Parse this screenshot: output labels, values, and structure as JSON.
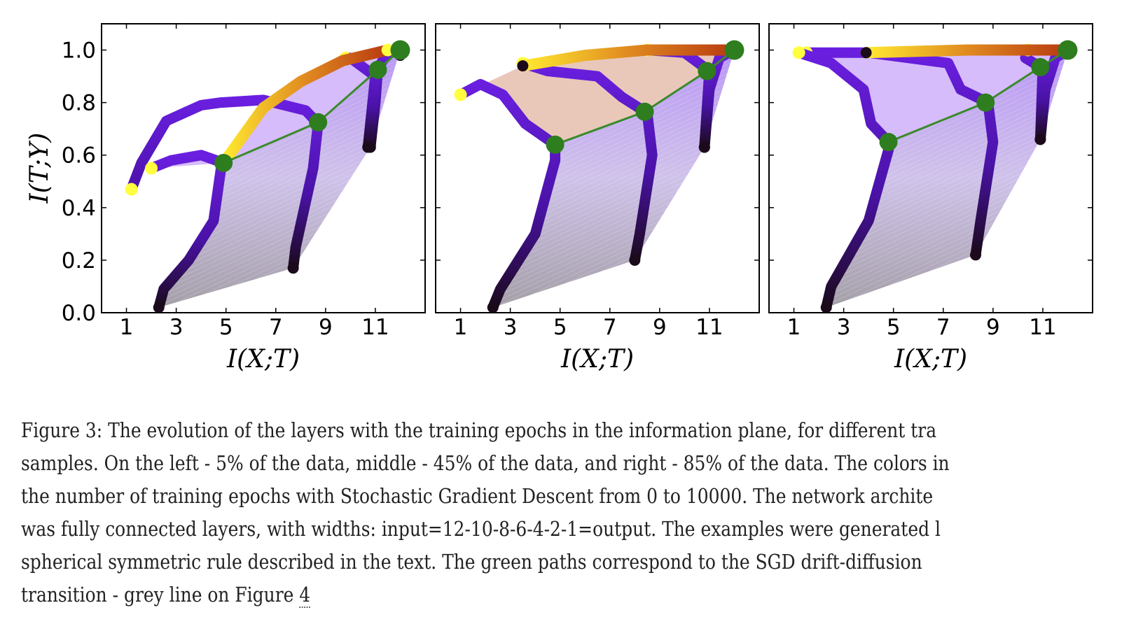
{
  "chart_data": [
    {
      "type": "line",
      "panel": "left",
      "title": "",
      "xlabel": "I(X;T)",
      "ylabel": "I(T;Y)",
      "xlim": [
        0,
        13
      ],
      "ylim": [
        0,
        1.1
      ],
      "xticks": [
        "1",
        "3",
        "5",
        "7",
        "9",
        "11"
      ],
      "xtick_values": [
        1,
        3,
        5,
        7,
        9,
        11
      ],
      "yticks": [
        "0.0",
        "0.2",
        "0.4",
        "0.6",
        "0.8",
        "1.0"
      ],
      "ytick_values": [
        0,
        0.2,
        0.4,
        0.6,
        0.8,
        1.0
      ],
      "colormap": "epochs 0 (black) → purple → red → yellow (10000)",
      "layers": [
        {
          "name": "layer-1",
          "path": [
            [
              12.0,
              0.98
            ],
            [
              12.0,
              1.0
            ]
          ]
        },
        {
          "name": "layer-2",
          "path": [
            [
              10.8,
              0.63
            ],
            [
              11.0,
              0.8
            ],
            [
              11.1,
              0.93
            ],
            [
              11.5,
              0.99
            ],
            [
              12.0,
              1.0
            ]
          ]
        },
        {
          "name": "layer-3",
          "path": [
            [
              7.7,
              0.17
            ],
            [
              7.8,
              0.25
            ],
            [
              8.5,
              0.55
            ],
            [
              8.7,
              0.72
            ],
            [
              8.2,
              0.77
            ],
            [
              6.5,
              0.81
            ],
            [
              4.8,
              0.8
            ],
            [
              4.0,
              0.79
            ],
            [
              2.6,
              0.73
            ],
            [
              1.6,
              0.57
            ],
            [
              1.2,
              0.47
            ]
          ]
        },
        {
          "name": "layer-4",
          "path": [
            [
              2.3,
              0.02
            ],
            [
              2.5,
              0.09
            ],
            [
              3.5,
              0.2
            ],
            [
              4.5,
              0.35
            ],
            [
              4.8,
              0.55
            ],
            [
              4.9,
              0.57
            ],
            [
              4.0,
              0.6
            ],
            [
              2.8,
              0.58
            ],
            [
              2.0,
              0.55
            ]
          ]
        },
        {
          "name": "layer-5",
          "path": [
            [
              10.7,
              0.63
            ],
            [
              11.0,
              0.9
            ],
            [
              10.0,
              0.97
            ],
            [
              9.8,
              0.97
            ]
          ]
        },
        {
          "name": "layer-6",
          "path": [
            [
              4.9,
              0.57
            ],
            [
              6.5,
              0.78
            ],
            [
              8.0,
              0.88
            ],
            [
              9.7,
              0.96
            ],
            [
              11.5,
              1.0
            ]
          ]
        }
      ],
      "green_path": [
        [
          4.9,
          0.57
        ],
        [
          8.7,
          0.725
        ],
        [
          11.1,
          0.925
        ],
        [
          12.0,
          1.0
        ]
      ]
    },
    {
      "type": "line",
      "panel": "middle",
      "xlabel": "I(X;T)",
      "ylabel": "",
      "xlim": [
        0,
        13
      ],
      "ylim": [
        0,
        1.1
      ],
      "xticks": [
        "1",
        "3",
        "5",
        "7",
        "9",
        "11"
      ],
      "xtick_values": [
        1,
        3,
        5,
        7,
        9,
        11
      ],
      "yticks": [],
      "layers": [
        {
          "name": "layer-2",
          "path": [
            [
              10.8,
              0.63
            ],
            [
              11.0,
              0.85
            ],
            [
              11.4,
              0.97
            ],
            [
              12.0,
              1.0
            ]
          ]
        },
        {
          "name": "layer-3",
          "path": [
            [
              8.0,
              0.2
            ],
            [
              8.2,
              0.3
            ],
            [
              8.7,
              0.6
            ],
            [
              8.5,
              0.76
            ],
            [
              7.5,
              0.82
            ],
            [
              6.5,
              0.9
            ],
            [
              4.5,
              0.92
            ],
            [
              3.5,
              0.95
            ]
          ]
        },
        {
          "name": "layer-4",
          "path": [
            [
              2.3,
              0.02
            ],
            [
              2.6,
              0.09
            ],
            [
              4.0,
              0.3
            ],
            [
              4.8,
              0.58
            ],
            [
              4.8,
              0.64
            ],
            [
              3.6,
              0.72
            ],
            [
              2.7,
              0.83
            ],
            [
              1.8,
              0.87
            ],
            [
              1.0,
              0.83
            ]
          ]
        },
        {
          "name": "layer-5",
          "path": [
            [
              10.8,
              0.63
            ],
            [
              11.0,
              0.92
            ],
            [
              10.0,
              0.99
            ],
            [
              8.5,
              1.0
            ]
          ]
        },
        {
          "name": "layer-6",
          "path": [
            [
              3.5,
              0.94
            ],
            [
              6.0,
              0.98
            ],
            [
              8.5,
              1.0
            ],
            [
              12.0,
              1.0
            ]
          ]
        }
      ],
      "green_path": [
        [
          4.8,
          0.64
        ],
        [
          8.4,
          0.765
        ],
        [
          10.9,
          0.92
        ],
        [
          12.0,
          1.0
        ]
      ]
    },
    {
      "type": "line",
      "panel": "right",
      "xlabel": "I(X;T)",
      "ylabel": "",
      "xlim": [
        0,
        13
      ],
      "ylim": [
        0,
        1.1
      ],
      "xticks": [
        "1",
        "3",
        "5",
        "7",
        "9",
        "11"
      ],
      "xtick_values": [
        1,
        3,
        5,
        7,
        9,
        11
      ],
      "yticks": [],
      "layers": [
        {
          "name": "layer-2",
          "path": [
            [
              10.9,
              0.66
            ],
            [
              11.1,
              0.85
            ],
            [
              11.5,
              0.97
            ],
            [
              12.0,
              1.0
            ]
          ]
        },
        {
          "name": "layer-3",
          "path": [
            [
              8.3,
              0.22
            ],
            [
              8.5,
              0.35
            ],
            [
              9.0,
              0.65
            ],
            [
              8.8,
              0.8
            ],
            [
              7.7,
              0.85
            ],
            [
              7.2,
              0.95
            ],
            [
              4.0,
              0.99
            ],
            [
              1.5,
              0.99
            ]
          ]
        },
        {
          "name": "layer-4",
          "path": [
            [
              2.3,
              0.02
            ],
            [
              2.5,
              0.1
            ],
            [
              4.0,
              0.35
            ],
            [
              4.8,
              0.62
            ],
            [
              4.7,
              0.66
            ],
            [
              4.1,
              0.72
            ],
            [
              3.8,
              0.85
            ],
            [
              2.5,
              0.95
            ],
            [
              1.2,
              0.99
            ]
          ]
        },
        {
          "name": "layer-5",
          "path": [
            [
              10.9,
              0.66
            ],
            [
              11.0,
              0.93
            ],
            [
              10.3,
              0.97
            ],
            [
              10.4,
              1.0
            ]
          ]
        },
        {
          "name": "layer-6",
          "path": [
            [
              3.9,
              0.99
            ],
            [
              8.0,
              1.0
            ],
            [
              12.0,
              1.0
            ]
          ]
        }
      ],
      "green_path": [
        [
          4.8,
          0.65
        ],
        [
          8.7,
          0.8
        ],
        [
          10.9,
          0.935
        ],
        [
          12.0,
          1.0
        ]
      ]
    }
  ],
  "caption": {
    "lines": [
      "Figure 3: The evolution of the layers with the training epochs in the information plane, for different tra",
      "samples. On the left - 5% of the data, middle - 45% of the data, and right - 85% of the data. The colors in",
      "the number of training epochs with Stochastic Gradient Descent from 0 to 10000. The network archite",
      "was fully connected layers, with widths: input=12-10-8-6-4-2-1=output. The examples were generated l",
      "spherical symmetric rule described in the text. The green paths correspond to the SGD drift-diffusion",
      "transition - grey line on Figure "
    ],
    "figure_ref": "4"
  },
  "colors": {
    "green": "#2e7d1e",
    "green_line": "#3a8a2a",
    "early_epoch": "#1a0a1a",
    "mid_epoch": "#6a1fe0",
    "late_red": "#b83a10",
    "final_yellow": "#ffff40",
    "mesh": "#b8a0e0"
  }
}
